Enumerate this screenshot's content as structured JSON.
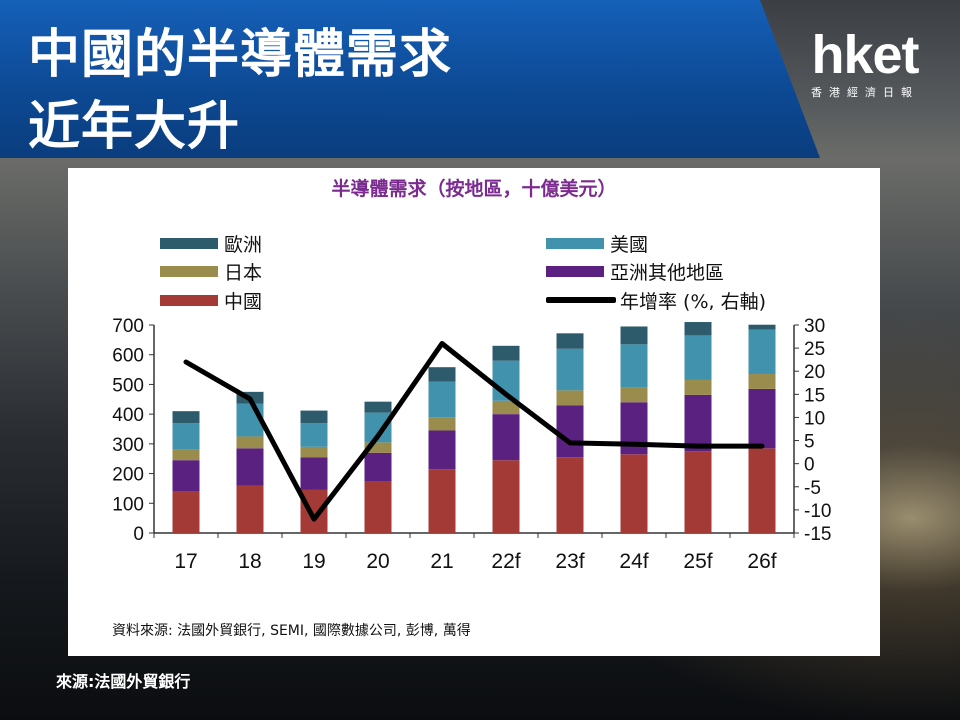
{
  "header": {
    "title_line1": "中國的半導體需求",
    "title_line2": "近年大升"
  },
  "logo": {
    "main": "hket",
    "sub": "香港經濟日報"
  },
  "footer": {
    "source": "來源:法國外貿銀行"
  },
  "chart_data": {
    "type": "bar",
    "stacked": true,
    "title": "半導體需求（按地區，十億美元）",
    "categories": [
      "17",
      "18",
      "19",
      "20",
      "21",
      "22f",
      "23f",
      "24f",
      "25f",
      "26f"
    ],
    "ylim": [
      0,
      700
    ],
    "y_ticks": [
      "700",
      "600",
      "500",
      "400",
      "300",
      "200",
      "100",
      "0"
    ],
    "y2lim": [
      -15,
      30
    ],
    "y2_ticks": [
      "30",
      "25",
      "20",
      "15",
      "10",
      "5",
      "0",
      "-5",
      "-10",
      "-15"
    ],
    "series": [
      {
        "name": "中國",
        "color": "#a33a36",
        "values": [
          140,
          160,
          145,
          175,
          215,
          245,
          255,
          265,
          275,
          285
        ]
      },
      {
        "name": "亞洲其他地區",
        "color": "#5a2180",
        "values": [
          105,
          125,
          110,
          95,
          130,
          155,
          175,
          175,
          190,
          200
        ]
      },
      {
        "name": "日本",
        "color": "#9a8c4c",
        "values": [
          35,
          40,
          35,
          35,
          45,
          45,
          50,
          50,
          50,
          50
        ]
      },
      {
        "name": "美國",
        "color": "#4193ad",
        "values": [
          90,
          110,
          80,
          100,
          120,
          135,
          140,
          145,
          150,
          150
        ]
      },
      {
        "name": "歐洲",
        "color": "#2d5b6c",
        "values": [
          40,
          40,
          42,
          37,
          48,
          50,
          52,
          60,
          45,
          16
        ]
      },
      {
        "name": "年增率 (%, 右軸)",
        "type": "line",
        "axis": "right",
        "color": "#000000",
        "values": [
          22,
          14,
          -12,
          6,
          26,
          15,
          4.5,
          4.2,
          3.8,
          3.8
        ]
      }
    ],
    "legend_position": "top",
    "grid": false
  },
  "source_note": "資料來源: 法國外貿銀行, SEMI, 國際數據公司, 彭博, 萬得"
}
